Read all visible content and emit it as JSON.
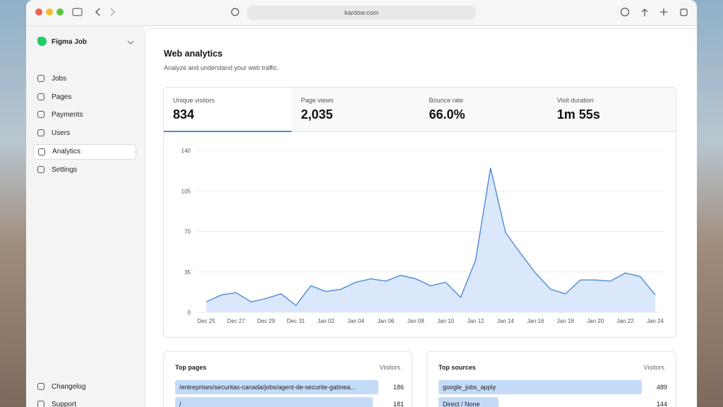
{
  "browser": {
    "url": "kardow.com"
  },
  "sidebar": {
    "workspace": "Figma Job",
    "nav": [
      "Jobs",
      "Pages",
      "Payments",
      "Users",
      "Analytics",
      "Settings"
    ],
    "active": "Analytics",
    "footer": [
      "Changelog",
      "Support"
    ]
  },
  "main": {
    "title": "Web analytics",
    "subtitle": "Analyze and understand your web traffic.",
    "stats": [
      {
        "label": "Unique visitors",
        "value": "834"
      },
      {
        "label": "Page views",
        "value": "2,035"
      },
      {
        "label": "Bounce rate",
        "value": "66.0%"
      },
      {
        "label": "Visit duration",
        "value": "1m 55s"
      }
    ],
    "chart": {
      "type": "line",
      "categories": [
        "Dec 25",
        null,
        "Dec 27",
        null,
        "Dec 29",
        null,
        "Dec 31",
        null,
        "Jan 02",
        null,
        "Jan 04",
        null,
        "Jan 06",
        null,
        "Jan 08",
        null,
        "Jan 10",
        null,
        "Jan 12",
        null,
        "Jan 14",
        null,
        "Jan 16",
        null,
        "Jan 18",
        null,
        "Jan 20",
        null,
        "Jan 22",
        null,
        "Jan 24"
      ],
      "values": [
        9,
        15,
        17,
        9,
        12,
        16,
        6,
        23,
        18,
        20,
        26,
        29,
        27,
        32,
        29,
        23,
        26,
        13,
        45,
        125,
        69,
        51,
        34,
        20,
        16,
        28,
        28,
        27,
        34,
        31,
        15
      ],
      "ylim": [
        0,
        140
      ],
      "yticks": [
        0,
        35,
        70,
        105,
        140
      ],
      "color": "#4a8ad8",
      "fill": "#dbe8fb",
      "grid": true
    },
    "top_pages": {
      "title": "Top pages",
      "column": "Visitors",
      "rows": [
        {
          "label": "/entreprises/securitas-canada/jobs/agent-de-securite-gatinea...",
          "value": 186
        },
        {
          "label": "/",
          "value": 181
        }
      ]
    },
    "top_sources": {
      "title": "Top sources",
      "column": "Visitors",
      "rows": [
        {
          "label": "google_jobs_apply",
          "value": 489
        },
        {
          "label": "Direct / None",
          "value": 144
        }
      ]
    }
  }
}
